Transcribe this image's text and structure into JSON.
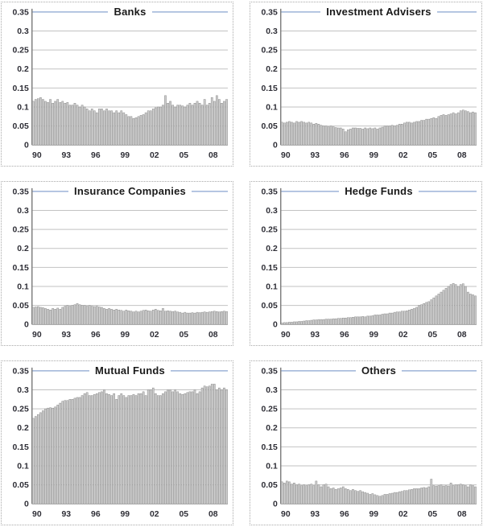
{
  "page": {
    "description": "Panel of six quarterly bar charts showing ownership shares by institution type, 1990-2009"
  },
  "colors": {
    "bar_fill": "#cdcdcd",
    "bar_stroke": "#8a8a8a",
    "gridline": "#c2c2c2",
    "top_border_line": "#9db3d8",
    "zero_axis": "#999999",
    "y_axis_line": "#808080",
    "tick_label": "#2e2e36",
    "title_text": "#1a1a1a",
    "panel_border": "#a9a9a9"
  },
  "chart_data": [
    {
      "type": "bar",
      "title": "Banks",
      "frequency": "quarterly",
      "x_start": "1990Q1",
      "x_end": "2009Q4",
      "ylim": [
        0,
        0.35
      ],
      "y_tick_step": 0.05,
      "x_tick_labels": [
        "90",
        "93",
        "96",
        "99",
        "02",
        "05",
        "08"
      ],
      "x_tick_indices": [
        0,
        12,
        24,
        36,
        48,
        60,
        72
      ],
      "grid": true,
      "legend": "none",
      "values": [
        0.115,
        0.12,
        0.122,
        0.125,
        0.12,
        0.115,
        0.112,
        0.12,
        0.11,
        0.115,
        0.12,
        0.112,
        0.115,
        0.11,
        0.112,
        0.105,
        0.105,
        0.11,
        0.105,
        0.1,
        0.105,
        0.1,
        0.095,
        0.09,
        0.095,
        0.09,
        0.085,
        0.095,
        0.095,
        0.09,
        0.095,
        0.09,
        0.09,
        0.085,
        0.09,
        0.085,
        0.09,
        0.085,
        0.08,
        0.075,
        0.075,
        0.07,
        0.072,
        0.075,
        0.078,
        0.08,
        0.085,
        0.09,
        0.09,
        0.095,
        0.098,
        0.1,
        0.1,
        0.105,
        0.13,
        0.11,
        0.115,
        0.105,
        0.1,
        0.105,
        0.105,
        0.103,
        0.1,
        0.105,
        0.11,
        0.105,
        0.11,
        0.115,
        0.11,
        0.105,
        0.12,
        0.105,
        0.11,
        0.125,
        0.115,
        0.13,
        0.12,
        0.11,
        0.115,
        0.12
      ]
    },
    {
      "type": "bar",
      "title": "Investment Advisers",
      "frequency": "quarterly",
      "x_start": "1990Q1",
      "x_end": "2009Q4",
      "ylim": [
        0,
        0.35
      ],
      "y_tick_step": 0.05,
      "x_tick_labels": [
        "90",
        "93",
        "96",
        "99",
        "02",
        "05",
        "08"
      ],
      "x_tick_indices": [
        0,
        12,
        24,
        36,
        48,
        60,
        72
      ],
      "grid": true,
      "legend": "none",
      "values": [
        0.06,
        0.058,
        0.06,
        0.062,
        0.06,
        0.058,
        0.062,
        0.06,
        0.062,
        0.06,
        0.058,
        0.06,
        0.058,
        0.055,
        0.057,
        0.055,
        0.052,
        0.05,
        0.05,
        0.048,
        0.05,
        0.048,
        0.046,
        0.045,
        0.045,
        0.042,
        0.035,
        0.04,
        0.042,
        0.045,
        0.045,
        0.044,
        0.044,
        0.042,
        0.045,
        0.043,
        0.045,
        0.043,
        0.045,
        0.042,
        0.045,
        0.047,
        0.05,
        0.05,
        0.05,
        0.052,
        0.05,
        0.052,
        0.055,
        0.055,
        0.058,
        0.06,
        0.06,
        0.058,
        0.06,
        0.062,
        0.062,
        0.065,
        0.065,
        0.068,
        0.068,
        0.07,
        0.072,
        0.07,
        0.075,
        0.078,
        0.08,
        0.078,
        0.08,
        0.082,
        0.085,
        0.082,
        0.085,
        0.09,
        0.092,
        0.09,
        0.088,
        0.085,
        0.087,
        0.085
      ]
    },
    {
      "type": "bar",
      "title": "Insurance Companies",
      "frequency": "quarterly",
      "x_start": "1990Q1",
      "x_end": "2009Q4",
      "ylim": [
        0,
        0.35
      ],
      "y_tick_step": 0.05,
      "x_tick_labels": [
        "90",
        "93",
        "96",
        "99",
        "02",
        "05",
        "08"
      ],
      "x_tick_indices": [
        0,
        12,
        24,
        36,
        48,
        60,
        72
      ],
      "grid": true,
      "legend": "none",
      "values": [
        0.045,
        0.046,
        0.047,
        0.045,
        0.044,
        0.042,
        0.04,
        0.038,
        0.042,
        0.04,
        0.043,
        0.04,
        0.045,
        0.048,
        0.05,
        0.048,
        0.05,
        0.052,
        0.055,
        0.052,
        0.05,
        0.05,
        0.048,
        0.05,
        0.048,
        0.047,
        0.048,
        0.046,
        0.045,
        0.042,
        0.04,
        0.042,
        0.04,
        0.038,
        0.04,
        0.038,
        0.037,
        0.035,
        0.038,
        0.036,
        0.035,
        0.033,
        0.035,
        0.033,
        0.035,
        0.037,
        0.038,
        0.036,
        0.035,
        0.038,
        0.04,
        0.037,
        0.036,
        0.042,
        0.035,
        0.036,
        0.035,
        0.034,
        0.035,
        0.033,
        0.032,
        0.03,
        0.032,
        0.03,
        0.03,
        0.031,
        0.03,
        0.032,
        0.031,
        0.032,
        0.033,
        0.032,
        0.033,
        0.034,
        0.035,
        0.034,
        0.033,
        0.034,
        0.035,
        0.034
      ]
    },
    {
      "type": "bar",
      "title": "Hedge Funds",
      "frequency": "quarterly",
      "x_start": "1990Q1",
      "x_end": "2009Q4",
      "ylim": [
        0,
        0.35
      ],
      "y_tick_step": 0.05,
      "x_tick_labels": [
        "90",
        "93",
        "96",
        "99",
        "02",
        "05",
        "08"
      ],
      "x_tick_indices": [
        0,
        12,
        24,
        36,
        48,
        60,
        72
      ],
      "grid": true,
      "legend": "none",
      "values": [
        0.004,
        0.005,
        0.005,
        0.006,
        0.006,
        0.007,
        0.007,
        0.008,
        0.008,
        0.009,
        0.01,
        0.01,
        0.011,
        0.012,
        0.012,
        0.013,
        0.013,
        0.013,
        0.014,
        0.014,
        0.014,
        0.015,
        0.015,
        0.016,
        0.016,
        0.017,
        0.017,
        0.018,
        0.018,
        0.019,
        0.02,
        0.02,
        0.02,
        0.021,
        0.02,
        0.022,
        0.022,
        0.023,
        0.025,
        0.025,
        0.025,
        0.027,
        0.028,
        0.028,
        0.03,
        0.03,
        0.032,
        0.033,
        0.033,
        0.035,
        0.035,
        0.036,
        0.038,
        0.04,
        0.042,
        0.045,
        0.05,
        0.052,
        0.055,
        0.058,
        0.06,
        0.065,
        0.07,
        0.075,
        0.08,
        0.085,
        0.09,
        0.095,
        0.1,
        0.105,
        0.108,
        0.105,
        0.1,
        0.105,
        0.107,
        0.1,
        0.085,
        0.08,
        0.078,
        0.075
      ]
    },
    {
      "type": "bar",
      "title": "Mutual Funds",
      "frequency": "quarterly",
      "x_start": "1990Q1",
      "x_end": "2009Q4",
      "ylim": [
        0,
        0.35
      ],
      "y_tick_step": 0.05,
      "x_tick_labels": [
        "90",
        "93",
        "96",
        "99",
        "02",
        "05",
        "08"
      ],
      "x_tick_indices": [
        0,
        12,
        24,
        36,
        48,
        60,
        72
      ],
      "grid": true,
      "legend": "none",
      "values": [
        0.225,
        0.23,
        0.235,
        0.24,
        0.245,
        0.25,
        0.252,
        0.253,
        0.252,
        0.255,
        0.26,
        0.265,
        0.27,
        0.272,
        0.272,
        0.275,
        0.275,
        0.278,
        0.28,
        0.28,
        0.285,
        0.29,
        0.293,
        0.285,
        0.285,
        0.288,
        0.29,
        0.293,
        0.295,
        0.3,
        0.29,
        0.288,
        0.285,
        0.29,
        0.275,
        0.285,
        0.29,
        0.285,
        0.28,
        0.285,
        0.285,
        0.288,
        0.285,
        0.29,
        0.29,
        0.295,
        0.285,
        0.3,
        0.3,
        0.305,
        0.29,
        0.285,
        0.285,
        0.29,
        0.295,
        0.3,
        0.3,
        0.295,
        0.3,
        0.295,
        0.29,
        0.288,
        0.29,
        0.293,
        0.295,
        0.295,
        0.3,
        0.29,
        0.295,
        0.305,
        0.31,
        0.308,
        0.31,
        0.315,
        0.315,
        0.3,
        0.305,
        0.3,
        0.305,
        0.3
      ]
    },
    {
      "type": "bar",
      "title": "Others",
      "frequency": "quarterly",
      "x_start": "1990Q1",
      "x_end": "2009Q4",
      "ylim": [
        0,
        0.35
      ],
      "y_tick_step": 0.05,
      "x_tick_labels": [
        "90",
        "93",
        "96",
        "99",
        "02",
        "05",
        "08"
      ],
      "x_tick_indices": [
        0,
        12,
        24,
        36,
        48,
        60,
        72
      ],
      "grid": true,
      "legend": "none",
      "values": [
        0.058,
        0.055,
        0.06,
        0.058,
        0.052,
        0.055,
        0.05,
        0.052,
        0.048,
        0.05,
        0.048,
        0.05,
        0.052,
        0.048,
        0.06,
        0.05,
        0.045,
        0.05,
        0.052,
        0.045,
        0.04,
        0.042,
        0.038,
        0.04,
        0.042,
        0.045,
        0.04,
        0.038,
        0.035,
        0.038,
        0.035,
        0.033,
        0.035,
        0.032,
        0.03,
        0.028,
        0.025,
        0.027,
        0.024,
        0.022,
        0.02,
        0.022,
        0.025,
        0.025,
        0.027,
        0.028,
        0.03,
        0.03,
        0.032,
        0.033,
        0.035,
        0.035,
        0.037,
        0.038,
        0.04,
        0.04,
        0.04,
        0.042,
        0.043,
        0.042,
        0.045,
        0.065,
        0.048,
        0.047,
        0.048,
        0.05,
        0.047,
        0.048,
        0.047,
        0.055,
        0.048,
        0.05,
        0.05,
        0.052,
        0.05,
        0.048,
        0.045,
        0.05,
        0.048,
        0.045
      ]
    }
  ]
}
